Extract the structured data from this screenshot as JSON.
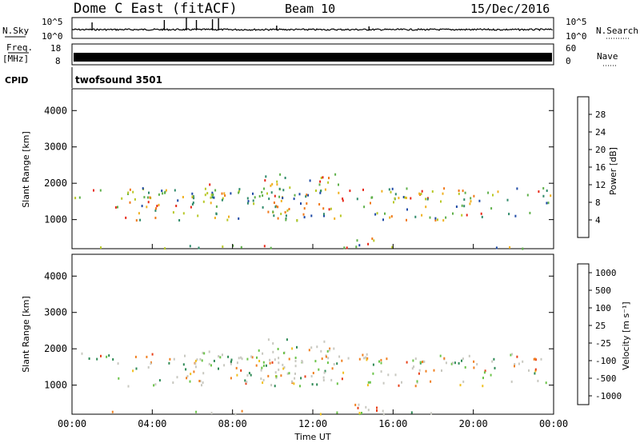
{
  "header": {
    "radar": "Dome C East (fitACF)",
    "beam": "Beam 10",
    "date": "15/Dec/2016"
  },
  "nsky": {
    "left_label": "N.Sky",
    "right_label": "N.Search",
    "ticks_left": [
      "10^5",
      "10^0"
    ],
    "ticks_right": [
      "10^5",
      "10^0"
    ]
  },
  "freq": {
    "left_label_top": "Freq.",
    "left_label_unit": "[MHz]",
    "ticks_left": [
      "18",
      "8"
    ],
    "right_label": "Nave",
    "ticks_right": [
      "60",
      "0"
    ]
  },
  "cpid": {
    "label": "CPID",
    "value": "twofsound 3501"
  },
  "xaxis": {
    "label": "Time UT",
    "ticks": [
      "00:00",
      "04:00",
      "08:00",
      "12:00",
      "16:00",
      "20:00",
      "00:00"
    ]
  },
  "chart_data": [
    {
      "type": "heatmap",
      "quantity": "Power",
      "ylabel": "Slant Range [km]",
      "yticks": [
        "1000",
        "2000",
        "3000",
        "4000"
      ],
      "ylim": [
        200,
        4600
      ],
      "xlim": [
        "00:00",
        "24:00"
      ],
      "colorbar": {
        "label": "Power [dB]",
        "ticks": [
          "4",
          "8",
          "12",
          "16",
          "20",
          "24",
          "28"
        ],
        "colors": [
          "#0b0bdc",
          "#1f4aa6",
          "#2f8a6a",
          "#5fb04a",
          "#b8c828",
          "#f0b020",
          "#f07818",
          "#e82818"
        ]
      }
    },
    {
      "type": "heatmap",
      "quantity": "Velocity",
      "ylabel": "Slant Range [km]",
      "yticks": [
        "1000",
        "2000",
        "3000",
        "4000"
      ],
      "ylim": [
        200,
        4600
      ],
      "xlim": [
        "00:00",
        "24:00"
      ],
      "colorbar": {
        "label": "Velocity [m s⁻¹]",
        "ticks": [
          "1000",
          "500",
          "100",
          "25",
          "-25",
          "-100",
          "-500",
          "-1000"
        ],
        "colors": [
          "#1a3cc8",
          "#2f6fa0",
          "#2e8a55",
          "#6cc44a",
          "#c8c8c0",
          "#f0c020",
          "#f08020",
          "#e84018",
          "#e81818"
        ]
      }
    }
  ]
}
